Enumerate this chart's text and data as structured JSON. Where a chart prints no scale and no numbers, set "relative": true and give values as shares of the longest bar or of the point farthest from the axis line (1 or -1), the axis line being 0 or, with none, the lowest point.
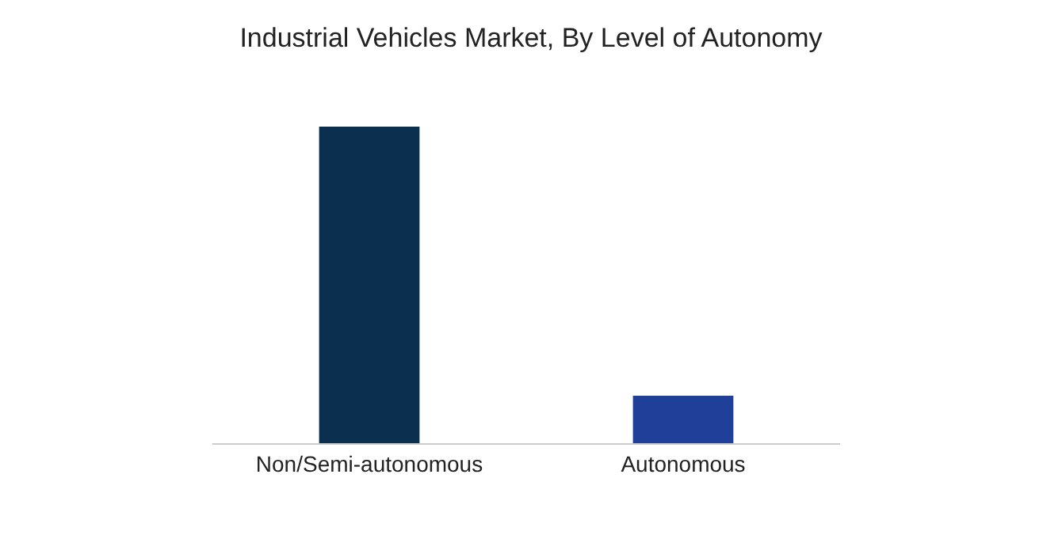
{
  "chart_data": {
    "type": "bar",
    "title": "Industrial Vehicles Market, By Level of Autonomy",
    "categories": [
      "Non/Semi-autonomous",
      "Autonomous"
    ],
    "values": [
      1,
      0.15
    ],
    "colors": [
      "#0b2f4f",
      "#1f3f99"
    ],
    "relative": true
  }
}
